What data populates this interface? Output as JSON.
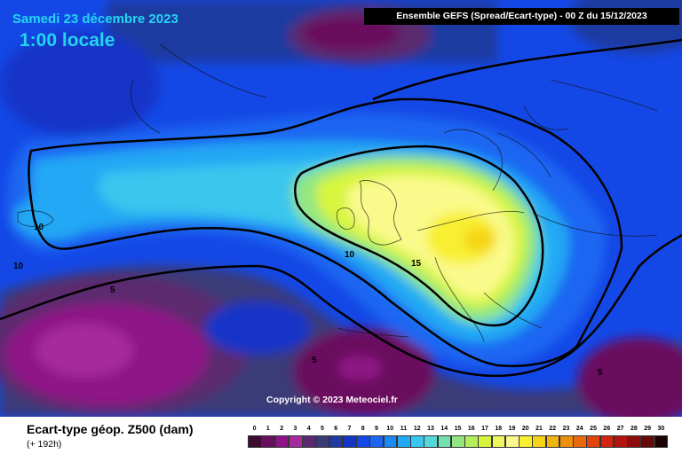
{
  "header": {
    "date": "Samedi 23 décembre 2023",
    "time": "1:00 locale",
    "run_info": "Ensemble GEFS (Spread/Ecart-type) - 00 Z du 15/12/2023"
  },
  "footer": {
    "variable_title": "Ecart-type géop. Z500 (dam)",
    "forecast_horizon": "(+ 192h)",
    "copyright": "Copyright © 2023 Meteociel.fr"
  },
  "contour_labels": [
    "10",
    "10",
    "10",
    "15",
    "5",
    "5",
    "5"
  ],
  "legend": {
    "values": [
      "0",
      "1",
      "2",
      "3",
      "4",
      "5",
      "6",
      "7",
      "8",
      "9",
      "10",
      "11",
      "12",
      "13",
      "14",
      "15",
      "16",
      "17",
      "18",
      "19",
      "20",
      "21",
      "22",
      "23",
      "24",
      "25",
      "26",
      "27",
      "28",
      "29",
      "30"
    ],
    "colors": [
      "#3d0a30",
      "#6a0e5e",
      "#8e1386",
      "#a52a9c",
      "#5b2a6e",
      "#3a3a78",
      "#1f3aa0",
      "#1534c8",
      "#1448e6",
      "#1c66f2",
      "#1a88f5",
      "#22a8f4",
      "#3ac6ee",
      "#55d8d8",
      "#73e0b0",
      "#92e682",
      "#b4ee5c",
      "#d8f53e",
      "#eef75e",
      "#fafa8c",
      "#f8ef30",
      "#f5d418",
      "#f2b40e",
      "#ef900c",
      "#e96a0c",
      "#e3440c",
      "#d2240e",
      "#b4140e",
      "#8e0c0c",
      "#650808",
      "#1c0202"
    ]
  },
  "colors": {
    "title_cyan": "#22d6f2",
    "contour": "#000000",
    "background_ocean": "#1448e6"
  }
}
